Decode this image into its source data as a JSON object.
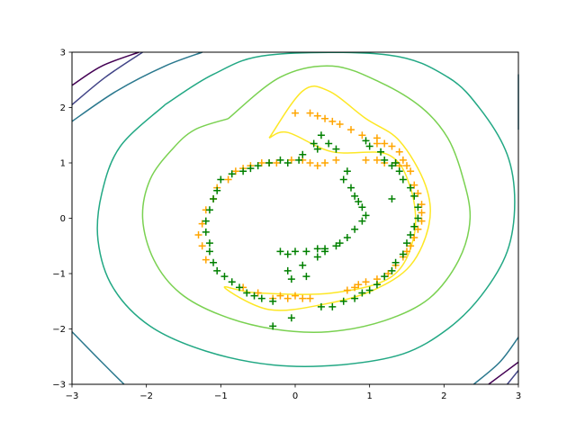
{
  "chart_data": {
    "type": "contour+scatter",
    "title": "",
    "xlabel": "",
    "ylabel": "",
    "xlim": [
      -3,
      3
    ],
    "ylim": [
      -3,
      3
    ],
    "x_ticks": [
      -3,
      -2,
      -1,
      0,
      1,
      2,
      3
    ],
    "y_ticks": [
      -3,
      -2,
      -1,
      0,
      1,
      2,
      3
    ],
    "tick_labels_x": [
      "−3",
      "−2",
      "−1",
      "0",
      "1",
      "2",
      "3"
    ],
    "tick_labels_y": [
      "−3",
      "−2",
      "−1",
      "0",
      "1",
      "2",
      "3"
    ],
    "grid": false,
    "legend": "none",
    "contours": [
      {
        "color": "#fde725",
        "points": [
          [
            -0.35,
            1.45
          ],
          [
            0.1,
            2.3
          ],
          [
            0.45,
            2.3
          ],
          [
            0.95,
            1.8
          ],
          [
            1.4,
            1.4
          ],
          [
            1.75,
            0.6
          ],
          [
            1.8,
            -0.1
          ],
          [
            1.55,
            -0.85
          ],
          [
            1.05,
            -1.3
          ],
          [
            0.4,
            -1.55
          ],
          [
            -0.35,
            -1.65
          ],
          [
            -0.95,
            -1.25
          ],
          [
            -0.5,
            -1.35
          ],
          [
            0.5,
            -1.35
          ],
          [
            1.3,
            -1.05
          ],
          [
            1.6,
            -0.3
          ],
          [
            1.55,
            0.55
          ],
          [
            1.25,
            1.15
          ],
          [
            0.5,
            1.2
          ],
          [
            -0.1,
            1.55
          ],
          [
            -0.35,
            1.45
          ]
        ]
      },
      {
        "color": "#7ad151",
        "points": [
          [
            -0.9,
            1.8
          ],
          [
            -0.2,
            2.55
          ],
          [
            0.5,
            2.75
          ],
          [
            1.15,
            2.45
          ],
          [
            1.7,
            2.0
          ],
          [
            2.05,
            1.45
          ],
          [
            2.25,
            0.75
          ],
          [
            2.35,
            0.0
          ],
          [
            2.2,
            -0.75
          ],
          [
            1.8,
            -1.45
          ],
          [
            1.2,
            -1.85
          ],
          [
            0.45,
            -2.05
          ],
          [
            -0.3,
            -2.0
          ],
          [
            -1.0,
            -1.75
          ],
          [
            -1.55,
            -1.35
          ],
          [
            -1.9,
            -0.75
          ],
          [
            -2.05,
            0.0
          ],
          [
            -1.95,
            0.7
          ],
          [
            -1.65,
            1.25
          ],
          [
            -1.35,
            1.6
          ],
          [
            -0.9,
            1.8
          ]
        ]
      },
      {
        "color": "#22a884",
        "points": [
          [
            -1.75,
            2.05
          ],
          [
            -1.1,
            2.6
          ],
          [
            -0.35,
            2.95
          ],
          [
            1.25,
            2.95
          ],
          [
            2.05,
            2.55
          ],
          [
            2.5,
            1.95
          ],
          [
            2.85,
            1.15
          ],
          [
            2.95,
            0.3
          ],
          [
            2.85,
            -0.6
          ],
          [
            2.5,
            -1.4
          ],
          [
            2.05,
            -2.0
          ],
          [
            1.45,
            -2.45
          ],
          [
            0.6,
            -2.65
          ],
          [
            -0.3,
            -2.65
          ],
          [
            -1.2,
            -2.4
          ],
          [
            -1.95,
            -1.95
          ],
          [
            -2.45,
            -1.25
          ],
          [
            -2.65,
            -0.4
          ],
          [
            -2.6,
            0.45
          ],
          [
            -2.35,
            1.3
          ],
          [
            -1.75,
            2.05
          ]
        ]
      },
      {
        "color": "#2a788e",
        "points": [
          [
            -3.0,
            1.75
          ],
          [
            -2.4,
            2.3
          ],
          [
            -1.75,
            2.75
          ],
          [
            -1.25,
            3.0
          ]
        ]
      },
      {
        "color": "#2a788e",
        "points": [
          [
            3.0,
            2.6
          ],
          [
            3.0,
            1.6
          ]
        ]
      },
      {
        "color": "#2a788e",
        "points": [
          [
            -3.0,
            -2.05
          ],
          [
            -2.6,
            -2.6
          ],
          [
            -2.3,
            -3.0
          ]
        ]
      },
      {
        "color": "#2a788e",
        "points": [
          [
            2.4,
            -3.0
          ],
          [
            2.75,
            -2.6
          ],
          [
            3.0,
            -2.15
          ]
        ]
      },
      {
        "color": "#414487",
        "points": [
          [
            -3.0,
            2.05
          ],
          [
            -2.55,
            2.55
          ],
          [
            -2.05,
            3.0
          ]
        ]
      },
      {
        "color": "#414487",
        "points": [
          [
            3.0,
            -2.75
          ],
          [
            2.85,
            -3.0
          ]
        ]
      },
      {
        "color": "#440154",
        "points": [
          [
            -3.0,
            2.4
          ],
          [
            -2.6,
            2.75
          ],
          [
            -2.1,
            3.0
          ]
        ]
      },
      {
        "color": "#440154",
        "points": [
          [
            2.6,
            -3.0
          ],
          [
            3.0,
            -2.6
          ]
        ]
      }
    ],
    "series": [
      {
        "color": "#ffa500",
        "marker": "+",
        "points": [
          [
            0.0,
            1.9
          ],
          [
            0.2,
            1.9
          ],
          [
            0.3,
            1.85
          ],
          [
            0.4,
            1.8
          ],
          [
            0.5,
            1.75
          ],
          [
            0.6,
            1.7
          ],
          [
            0.75,
            1.6
          ],
          [
            0.9,
            1.5
          ],
          [
            1.1,
            1.45
          ],
          [
            1.2,
            1.35
          ],
          [
            1.3,
            1.3
          ],
          [
            1.4,
            1.2
          ],
          [
            1.45,
            1.05
          ],
          [
            1.5,
            0.95
          ],
          [
            1.55,
            0.85
          ],
          [
            1.6,
            0.6
          ],
          [
            1.65,
            0.45
          ],
          [
            1.7,
            0.25
          ],
          [
            1.7,
            0.1
          ],
          [
            1.7,
            -0.05
          ],
          [
            1.65,
            -0.2
          ],
          [
            1.6,
            -0.35
          ],
          [
            1.55,
            -0.5
          ],
          [
            1.5,
            -0.6
          ],
          [
            1.45,
            -0.7
          ],
          [
            1.35,
            -0.85
          ],
          [
            1.25,
            -1.0
          ],
          [
            1.1,
            -1.1
          ],
          [
            0.95,
            -1.15
          ],
          [
            0.85,
            -1.2
          ],
          [
            0.8,
            -1.25
          ],
          [
            0.7,
            -1.3
          ],
          [
            0.2,
            -1.45
          ],
          [
            0.1,
            -1.45
          ],
          [
            0.0,
            -1.4
          ],
          [
            -0.1,
            -1.45
          ],
          [
            -0.2,
            -1.4
          ],
          [
            -0.3,
            -1.45
          ],
          [
            -0.5,
            -1.35
          ],
          [
            -0.7,
            -1.25
          ],
          [
            -1.2,
            -0.75
          ],
          [
            -1.25,
            -0.5
          ],
          [
            -1.3,
            -0.3
          ],
          [
            -1.25,
            -0.1
          ],
          [
            -1.2,
            0.15
          ],
          [
            -1.1,
            0.35
          ],
          [
            -1.05,
            0.55
          ],
          [
            -0.9,
            0.7
          ],
          [
            -0.8,
            0.85
          ],
          [
            -0.7,
            0.9
          ],
          [
            -0.6,
            0.95
          ],
          [
            -0.45,
            1.0
          ],
          [
            -0.35,
            1.0
          ],
          [
            -0.25,
            1.0
          ],
          [
            -0.05,
            1.05
          ],
          [
            0.1,
            1.05
          ],
          [
            0.2,
            1.0
          ],
          [
            0.3,
            0.95
          ],
          [
            0.4,
            1.0
          ],
          [
            0.55,
            1.05
          ],
          [
            0.95,
            1.05
          ],
          [
            1.1,
            1.05
          ],
          [
            1.2,
            1.0
          ],
          [
            1.35,
            1.0
          ],
          [
            1.4,
            0.95
          ],
          [
            1.1,
            1.35
          ]
        ]
      },
      {
        "color": "#008000",
        "marker": "+",
        "points": [
          [
            0.35,
            1.5
          ],
          [
            0.45,
            1.35
          ],
          [
            0.55,
            1.25
          ],
          [
            0.25,
            1.35
          ],
          [
            0.3,
            1.25
          ],
          [
            0.1,
            1.15
          ],
          [
            0.05,
            1.05
          ],
          [
            -0.1,
            1.0
          ],
          [
            -0.2,
            1.05
          ],
          [
            -0.35,
            1.0
          ],
          [
            -0.5,
            0.95
          ],
          [
            -0.6,
            0.9
          ],
          [
            -0.7,
            0.85
          ],
          [
            -0.85,
            0.8
          ],
          [
            -1.0,
            0.7
          ],
          [
            -1.05,
            0.5
          ],
          [
            -1.1,
            0.35
          ],
          [
            -1.15,
            0.15
          ],
          [
            -1.2,
            -0.05
          ],
          [
            -1.2,
            -0.25
          ],
          [
            -1.15,
            -0.45
          ],
          [
            -1.15,
            -0.6
          ],
          [
            -1.1,
            -0.8
          ],
          [
            -1.05,
            -0.95
          ],
          [
            -0.95,
            -1.05
          ],
          [
            -0.85,
            -1.15
          ],
          [
            -0.75,
            -1.25
          ],
          [
            -0.65,
            -1.35
          ],
          [
            -0.55,
            -1.4
          ],
          [
            -0.45,
            -1.45
          ],
          [
            -0.3,
            -1.5
          ],
          [
            -0.3,
            -1.95
          ],
          [
            -0.05,
            -1.8
          ],
          [
            0.35,
            -1.6
          ],
          [
            0.5,
            -1.6
          ],
          [
            0.65,
            -1.5
          ],
          [
            0.8,
            -1.45
          ],
          [
            0.9,
            -1.35
          ],
          [
            1.0,
            -1.3
          ],
          [
            1.1,
            -1.2
          ],
          [
            1.2,
            -1.05
          ],
          [
            1.3,
            -0.95
          ],
          [
            1.35,
            -0.8
          ],
          [
            1.45,
            -0.65
          ],
          [
            1.5,
            -0.45
          ],
          [
            1.55,
            -0.3
          ],
          [
            1.6,
            -0.15
          ],
          [
            1.65,
            0.0
          ],
          [
            1.65,
            0.2
          ],
          [
            1.6,
            0.4
          ],
          [
            1.55,
            0.55
          ],
          [
            1.45,
            0.7
          ],
          [
            1.4,
            0.85
          ],
          [
            1.3,
            0.95
          ],
          [
            1.2,
            1.05
          ],
          [
            1.15,
            1.2
          ],
          [
            1.0,
            1.3
          ],
          [
            0.95,
            1.4
          ],
          [
            1.3,
            0.35
          ],
          [
            1.35,
            1.0
          ],
          [
            0.7,
            0.85
          ],
          [
            0.65,
            0.7
          ],
          [
            0.75,
            0.55
          ],
          [
            0.8,
            0.4
          ],
          [
            0.85,
            0.3
          ],
          [
            0.9,
            0.2
          ],
          [
            0.95,
            0.05
          ],
          [
            0.9,
            -0.05
          ],
          [
            0.8,
            -0.2
          ],
          [
            0.7,
            -0.35
          ],
          [
            0.55,
            -0.5
          ],
          [
            0.4,
            -0.55
          ],
          [
            0.3,
            -0.55
          ],
          [
            0.15,
            -0.6
          ],
          [
            0.0,
            -0.6
          ],
          [
            -0.1,
            -0.65
          ],
          [
            -0.2,
            -0.6
          ],
          [
            0.1,
            -0.85
          ],
          [
            -0.1,
            -0.95
          ],
          [
            0.15,
            -1.05
          ],
          [
            -0.05,
            -1.1
          ],
          [
            0.3,
            -0.7
          ],
          [
            0.4,
            -0.6
          ],
          [
            0.6,
            -0.45
          ]
        ]
      }
    ]
  }
}
